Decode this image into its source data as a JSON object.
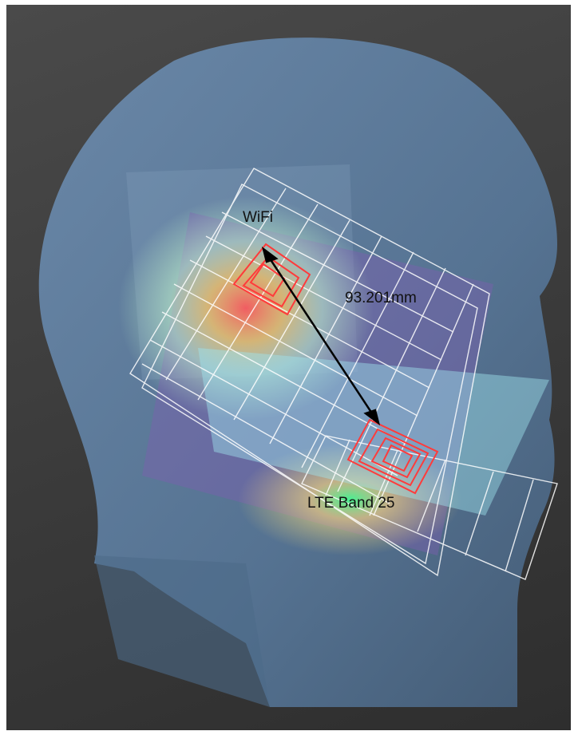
{
  "labels": {
    "wifi": "WiFi",
    "distance": "93.201mm",
    "lte": "LTE Band 25"
  },
  "colors": {
    "background": "#3a3a3a",
    "head": "#5e7c9a",
    "grid": "#ffffff",
    "antenna": "#ff3b3b",
    "arrow": "#000000"
  }
}
